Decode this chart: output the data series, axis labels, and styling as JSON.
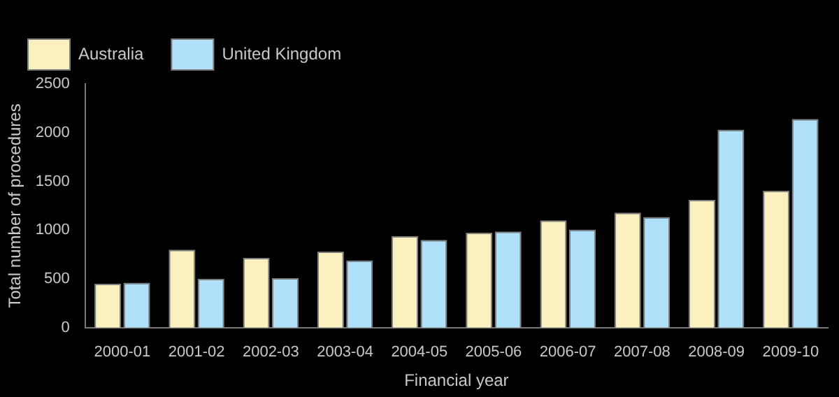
{
  "chart_data": {
    "type": "bar",
    "xlabel": "Financial year",
    "ylabel": "Total number of procedures",
    "categories": [
      "2000-01",
      "2001-02",
      "2002-03",
      "2003-04",
      "2004-05",
      "2005-06",
      "2006-07",
      "2007-08",
      "2008-09",
      "2009-10"
    ],
    "series": [
      {
        "name": "Australia",
        "color": "#faf0c0",
        "values": [
          450,
          800,
          715,
          780,
          940,
          975,
          1100,
          1180,
          1310,
          1405
        ]
      },
      {
        "name": "United Kingdom",
        "color": "#b0e0fa",
        "values": [
          460,
          500,
          510,
          690,
          900,
          985,
          1005,
          1135,
          2030,
          2140
        ]
      }
    ],
    "ylim": [
      0,
      2500
    ],
    "yticks": [
      0,
      500,
      1000,
      1500,
      2000,
      2500
    ],
    "grid": false,
    "legend": "top left"
  }
}
